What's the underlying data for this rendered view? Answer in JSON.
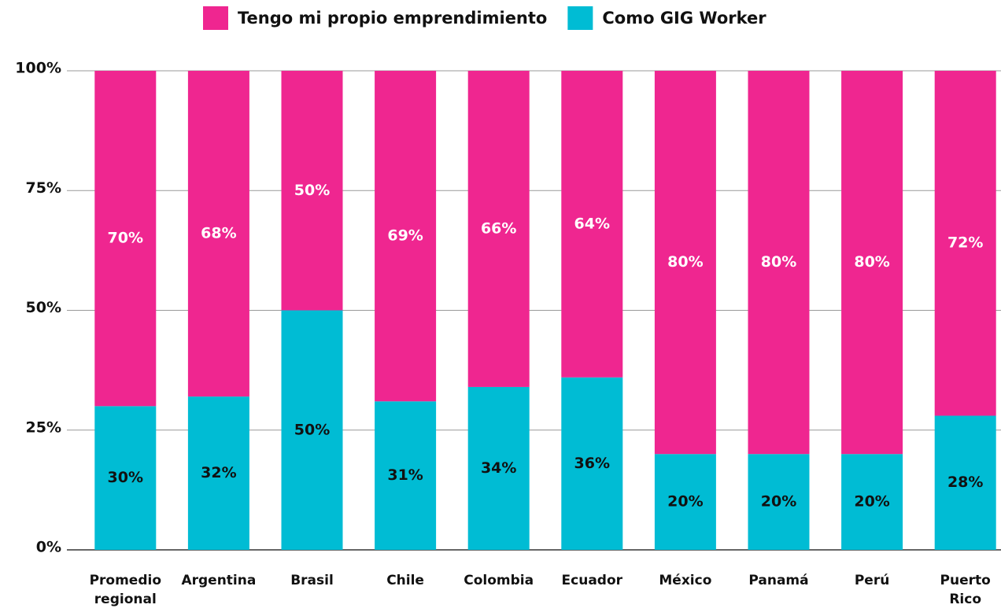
{
  "chart_data": {
    "type": "stacked_bar",
    "categories": [
      "Promedio regional",
      "Argentina",
      "Brasil",
      "Chile",
      "Colombia",
      "Ecuador",
      "México",
      "Panamá",
      "Perú",
      "Puerto Rico"
    ],
    "series": [
      {
        "name": "Como GIG Worker",
        "color": "#00bcd4",
        "values": [
          30,
          32,
          50,
          31,
          34,
          36,
          20,
          20,
          20,
          28
        ],
        "value_labels": [
          "30%",
          "32%",
          "50%",
          "31%",
          "34%",
          "36%",
          "20%",
          "20%",
          "20%",
          "28%"
        ]
      },
      {
        "name": "Tengo mi propio emprendimiento",
        "color": "#ef2690",
        "values": [
          70,
          68,
          50,
          69,
          66,
          64,
          80,
          80,
          80,
          72
        ],
        "value_labels": [
          "70%",
          "68%",
          "50%",
          "69%",
          "66%",
          "64%",
          "80%",
          "80%",
          "80%",
          "72%"
        ]
      }
    ],
    "ylim": [
      0,
      100
    ],
    "yticks": [
      {
        "value": 0,
        "label": "0%"
      },
      {
        "value": 25,
        "label": "25%"
      },
      {
        "value": 50,
        "label": "50%"
      },
      {
        "value": 75,
        "label": "75%"
      },
      {
        "value": 100,
        "label": "100%"
      }
    ],
    "grid": true
  }
}
